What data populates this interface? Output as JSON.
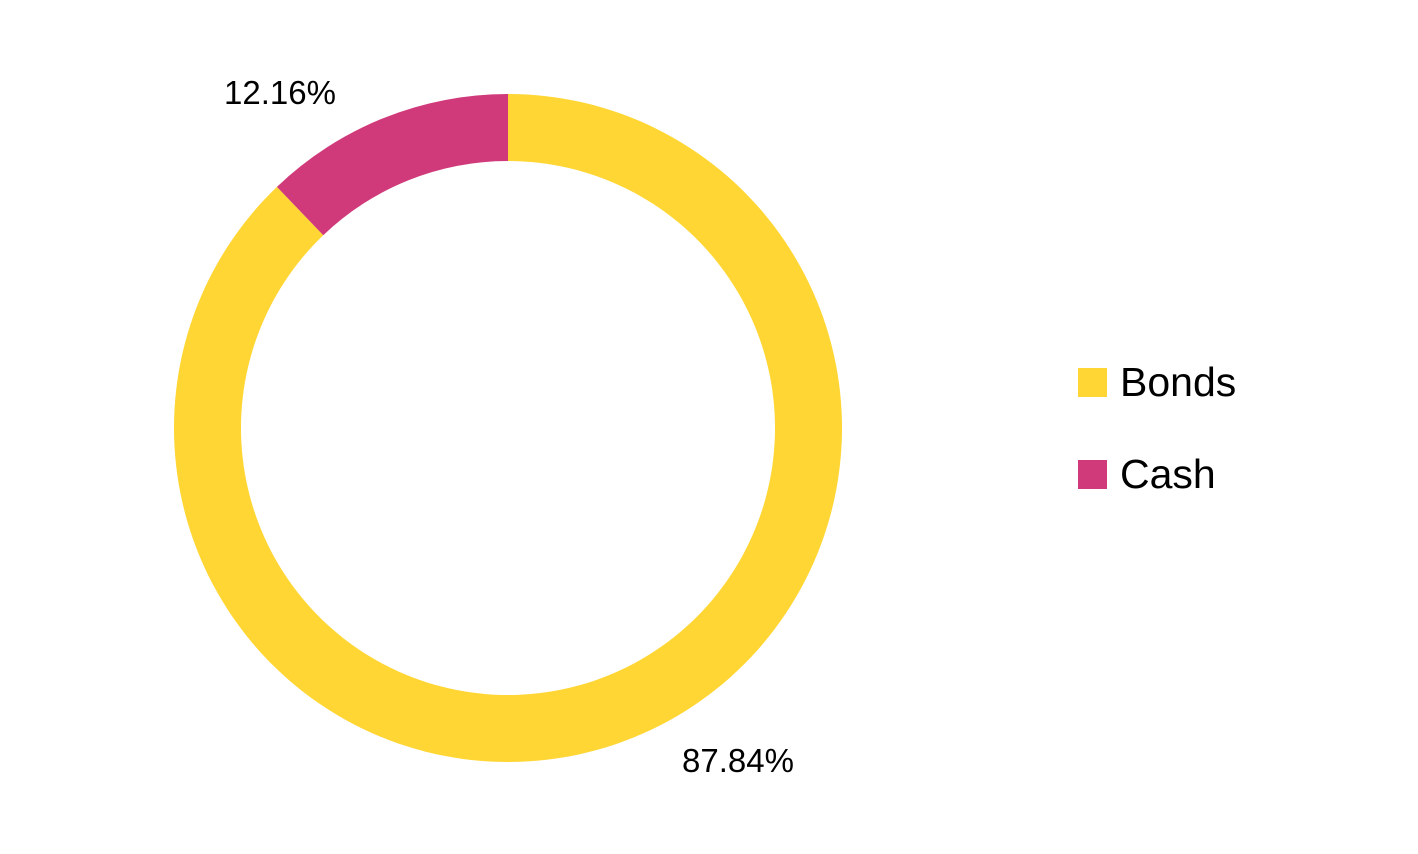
{
  "chart_data": {
    "type": "pie",
    "variant": "donut",
    "categories": [
      "Bonds",
      "Cash"
    ],
    "values": [
      87.84,
      12.16
    ],
    "data_labels": [
      "87.84%",
      "12.16%"
    ],
    "colors": [
      "#FFD633",
      "#D13A7A"
    ],
    "legend": {
      "placement": "right",
      "items": [
        {
          "label": "Bonds",
          "color": "#FFD633"
        },
        {
          "label": "Cash",
          "color": "#D13A7A"
        }
      ]
    }
  }
}
